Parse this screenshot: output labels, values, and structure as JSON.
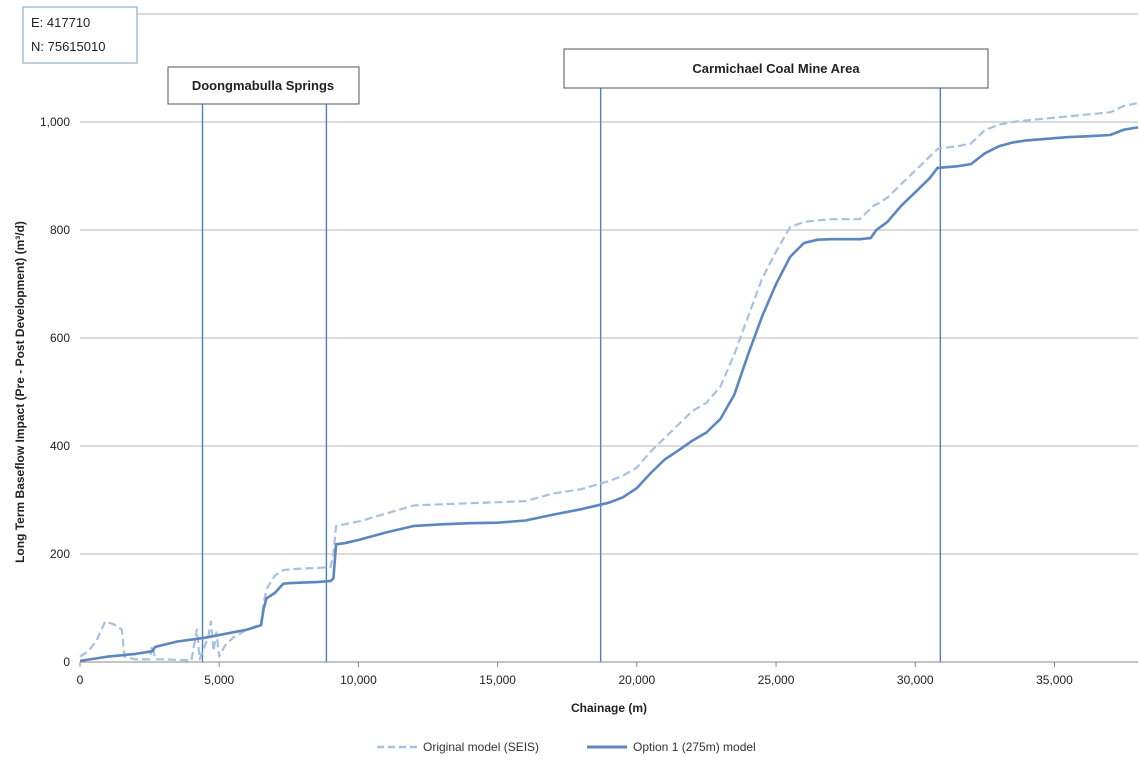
{
  "chart_data": {
    "type": "line",
    "title": "",
    "xlabel": "Chainage (m)",
    "ylabel": "Long Term Baseflow Impact   (Pre - Post Development) (m³/d)",
    "xlim": [
      0,
      38000
    ],
    "ylim": [
      0,
      1000
    ],
    "x_ticks": [
      0,
      5000,
      10000,
      15000,
      20000,
      25000,
      30000,
      35000
    ],
    "x_tick_labels": [
      "0",
      "5,000",
      "10,000",
      "15,000",
      "20,000",
      "25,000",
      "30,000",
      "35,000"
    ],
    "y_ticks": [
      0,
      200,
      400,
      600,
      800,
      1000
    ],
    "y_tick_labels": [
      "0",
      "200",
      "400",
      "600",
      "800",
      "1,000"
    ],
    "grid": "horizontal",
    "legend_position": "bottom",
    "series": [
      {
        "name": "Original model (SEIS)",
        "style": "dashed",
        "color": "#a9c1e0",
        "x": [
          0,
          300,
          600,
          900,
          1200,
          1500,
          1600,
          2000,
          2500,
          2600,
          2700,
          3000,
          4000,
          4200,
          4300,
          4400,
          4600,
          4700,
          4800,
          4900,
          5000,
          5200,
          5500,
          6000,
          6500,
          6600,
          6700,
          7000,
          7300,
          7600,
          8000,
          8500,
          9000,
          9100,
          9200,
          10000,
          11000,
          12000,
          13000,
          14000,
          15000,
          16000,
          17000,
          18000,
          19000,
          19500,
          20000,
          20500,
          21000,
          21500,
          22000,
          22500,
          23000,
          23500,
          24000,
          24500,
          25000,
          25500,
          26000,
          26500,
          27000,
          27500,
          28000,
          28500,
          28700,
          29000,
          29500,
          30000,
          30500,
          30800,
          31000,
          31500,
          32000,
          32500,
          33000,
          33500,
          34000,
          35000,
          36000,
          37000,
          37500,
          38000
        ],
        "y": [
          10,
          20,
          40,
          75,
          70,
          60,
          10,
          5,
          5,
          30,
          5,
          5,
          3,
          60,
          5,
          20,
          45,
          75,
          20,
          55,
          10,
          30,
          45,
          60,
          70,
          110,
          135,
          160,
          170,
          172,
          173,
          174,
          176,
          200,
          252,
          260,
          275,
          290,
          292,
          294,
          296,
          298,
          312,
          320,
          335,
          345,
          360,
          390,
          415,
          440,
          465,
          480,
          510,
          570,
          640,
          710,
          760,
          805,
          815,
          818,
          820,
          820,
          820,
          845,
          850,
          860,
          885,
          910,
          935,
          950,
          952,
          955,
          960,
          985,
          995,
          1000,
          1003,
          1008,
          1013,
          1018,
          1030,
          1035
        ]
      },
      {
        "name": "Option 1 (275m) model",
        "style": "solid",
        "color": "#5b86bf",
        "x": [
          0,
          1000,
          2000,
          2600,
          2700,
          3500,
          4500,
          5500,
          6000,
          6500,
          6600,
          6700,
          7000,
          7300,
          7500,
          8000,
          8500,
          9000,
          9100,
          9200,
          9500,
          10000,
          11000,
          12000,
          13000,
          14000,
          15000,
          16000,
          17000,
          18000,
          19000,
          19500,
          20000,
          20500,
          21000,
          21500,
          22000,
          22500,
          23000,
          23500,
          24000,
          24500,
          25000,
          25500,
          26000,
          26500,
          27000,
          27500,
          28000,
          28400,
          28600,
          29000,
          29500,
          30000,
          30500,
          30800,
          31000,
          31500,
          32000,
          32500,
          33000,
          33500,
          34000,
          35000,
          35500,
          36000,
          37000,
          37500,
          38000
        ],
        "y": [
          2,
          10,
          15,
          20,
          28,
          38,
          45,
          55,
          60,
          68,
          100,
          118,
          128,
          145,
          146,
          147,
          148,
          150,
          155,
          218,
          220,
          226,
          240,
          252,
          255,
          257,
          258,
          262,
          273,
          283,
          295,
          305,
          322,
          350,
          375,
          392,
          410,
          425,
          450,
          495,
          570,
          640,
          700,
          750,
          776,
          782,
          783,
          783,
          783,
          785,
          800,
          815,
          845,
          870,
          895,
          915,
          916,
          918,
          922,
          942,
          955,
          962,
          966,
          970,
          972,
          973,
          976,
          986,
          990
        ]
      }
    ],
    "reference_lines_x": [
      4400,
      8850,
      18700,
      30900
    ],
    "annotation_boxes": [
      {
        "text": "Doongmabulla Springs"
      },
      {
        "text": "Carmichael Coal Mine Area"
      }
    ]
  },
  "coords": {
    "easting": "E: 417710",
    "northing": "N: 75615010"
  },
  "legend": {
    "items": [
      {
        "label": "Original model (SEIS)"
      },
      {
        "label": "Option 1 (275m) model"
      }
    ]
  }
}
